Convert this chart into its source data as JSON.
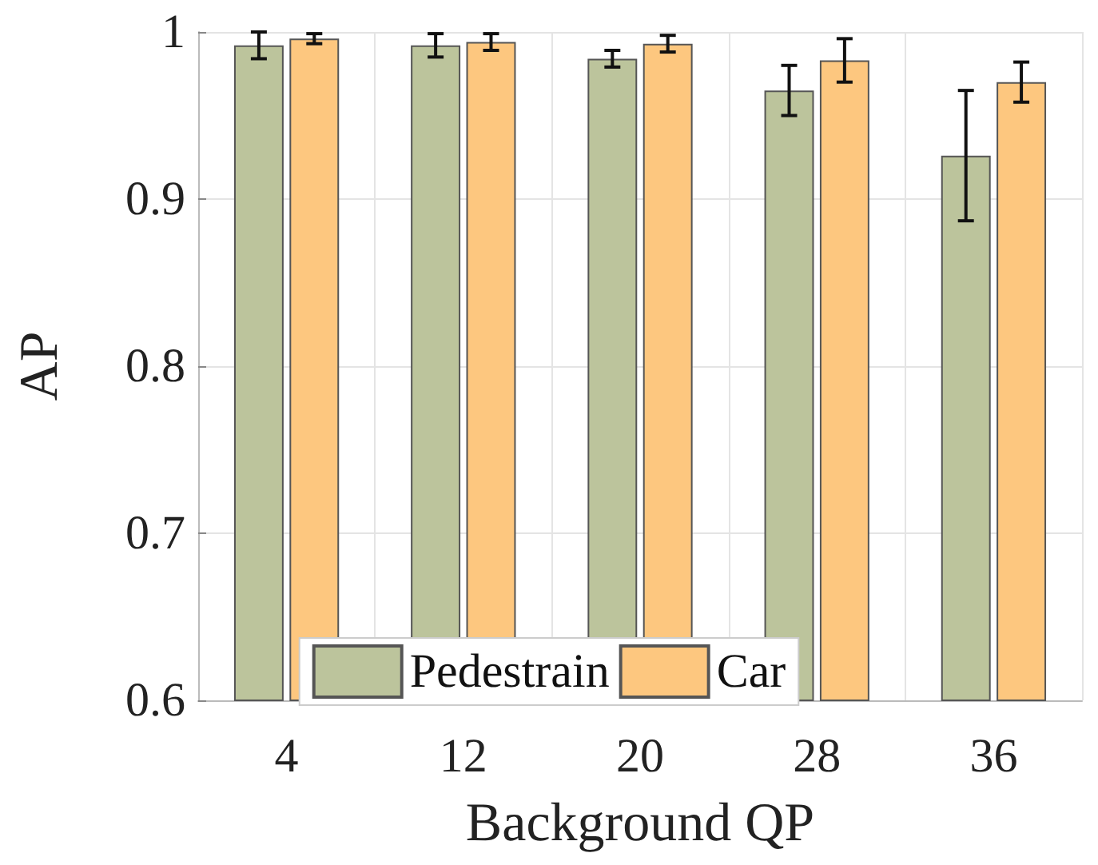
{
  "chart_data": {
    "type": "bar",
    "xlabel": "Background QP",
    "ylabel": "AP",
    "categories": [
      "4",
      "12",
      "20",
      "28",
      "36"
    ],
    "series": [
      {
        "name": "Pedestrain",
        "color": "#bcc49c",
        "values": [
          0.992,
          0.992,
          0.984,
          0.965,
          0.926
        ],
        "errors": [
          0.008,
          0.007,
          0.005,
          0.015,
          0.039
        ]
      },
      {
        "name": "Car",
        "color": "#fdc77f",
        "values": [
          0.996,
          0.994,
          0.993,
          0.983,
          0.97
        ],
        "errors": [
          0.003,
          0.005,
          0.005,
          0.013,
          0.012
        ]
      }
    ],
    "ylim": [
      0.6,
      1
    ],
    "yticks": [
      0.6,
      0.7,
      0.8,
      0.9,
      1
    ],
    "grid": true,
    "legend": "bottom"
  }
}
